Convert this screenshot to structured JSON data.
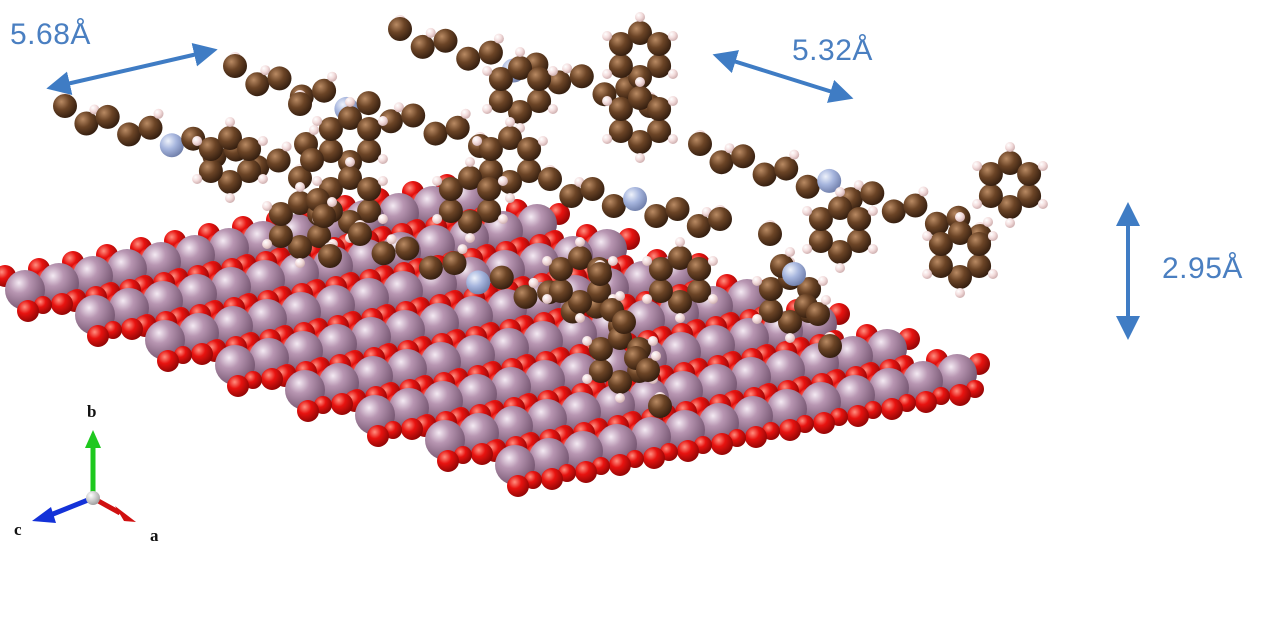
{
  "dimensions": [
    {
      "id": "d1",
      "label": "5.68Å"
    },
    {
      "id": "d2",
      "label": "5.32Å"
    },
    {
      "id": "d3",
      "label": "2.95Å"
    }
  ],
  "axes": {
    "a": "a",
    "b": "b",
    "c": "c"
  },
  "colors": {
    "substrate_metal": "#a986a3",
    "substrate_oxygen": "#e81310",
    "molecule_carbon": "#6b4426",
    "molecule_nitrogen": "#a7b6de",
    "molecule_hydrogen": "#f3dcdc",
    "dimension_arrow": "#3f7cc4",
    "axis_a": "#d01010",
    "axis_b": "#1ec81e",
    "axis_c": "#1432d8"
  }
}
